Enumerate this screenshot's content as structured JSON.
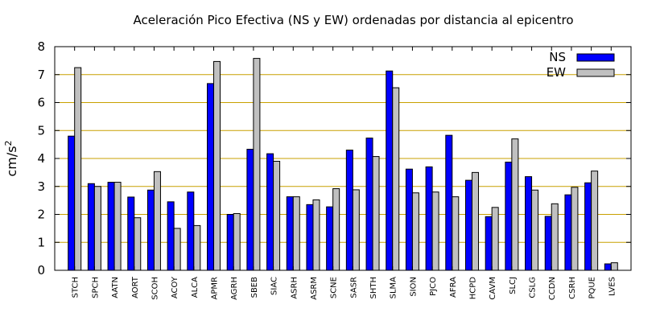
{
  "chart_data": {
    "type": "bar",
    "title": "Aceleración Pico Efectiva (NS y EW) ordenadas por distancia al epicentro",
    "xlabel": "",
    "ylabel": "cm/s",
    "ylabel_sup": "2",
    "ylim": [
      0,
      8
    ],
    "yticks": [
      "0",
      "1",
      "2",
      "3",
      "4",
      "5",
      "6",
      "7",
      "8"
    ],
    "grid": true,
    "legend_position": "top-right",
    "colors": {
      "NS": "#0000ff",
      "EW": "#c0c0c0",
      "grid": "#c8a000"
    },
    "categories": [
      "STCH",
      "SPCH",
      "AATN",
      "AORT",
      "SCOH",
      "ACOY",
      "ALCA",
      "APMR",
      "AGRH",
      "SBEB",
      "SIAC",
      "ASRH",
      "ASRM",
      "SCNE",
      "SASR",
      "SHTH",
      "SLMA",
      "SION",
      "PJCO",
      "AFRA",
      "HCPD",
      "CAVM",
      "SLCJ",
      "CSLG",
      "CCDN",
      "CSRH",
      "PQUE",
      "LVES"
    ],
    "series": [
      {
        "name": "NS",
        "values": [
          4.8,
          3.1,
          3.15,
          2.62,
          2.87,
          2.45,
          2.8,
          6.68,
          2.0,
          4.33,
          4.17,
          2.63,
          2.35,
          2.27,
          4.3,
          4.73,
          7.13,
          3.62,
          3.7,
          4.83,
          3.22,
          1.92,
          3.87,
          3.35,
          1.93,
          2.7,
          3.13,
          0.23
        ]
      },
      {
        "name": "EW",
        "values": [
          7.25,
          3.0,
          3.15,
          1.88,
          3.53,
          1.5,
          1.6,
          7.47,
          2.03,
          7.58,
          3.9,
          2.63,
          2.52,
          2.92,
          2.88,
          4.07,
          6.53,
          2.77,
          2.8,
          2.63,
          3.5,
          2.25,
          4.7,
          2.87,
          2.38,
          2.97,
          3.55,
          0.27
        ]
      }
    ]
  }
}
